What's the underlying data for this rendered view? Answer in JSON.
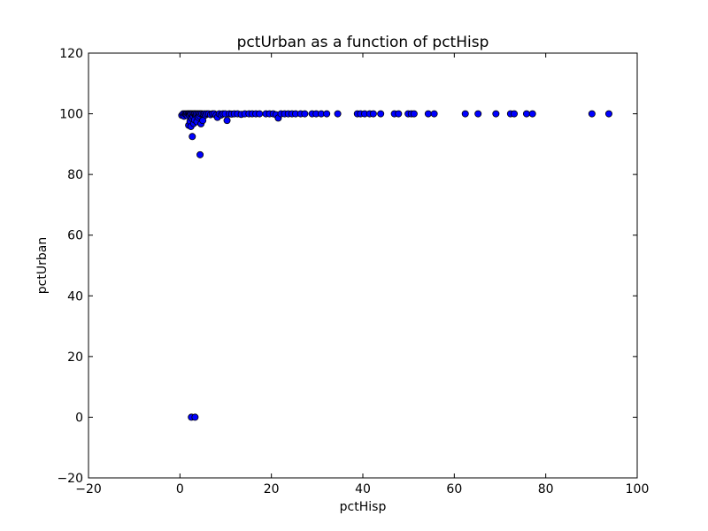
{
  "chart_data": {
    "type": "scatter",
    "title": "pctUrban as a function of pctHisp",
    "xlabel": "pctHisp",
    "ylabel": "pctUrban",
    "xlim": [
      -20,
      100
    ],
    "ylim": [
      -20,
      120
    ],
    "xticks": [
      -20,
      0,
      20,
      40,
      60,
      80,
      100
    ],
    "yticks": [
      -20,
      0,
      20,
      40,
      60,
      80,
      100,
      120
    ],
    "grid": false,
    "marker_color": "#0000ff",
    "marker_edge": "#000000",
    "points": [
      [
        0.4,
        99.5
      ],
      [
        0.7,
        100
      ],
      [
        0.9,
        99.2
      ],
      [
        1.1,
        100
      ],
      [
        1.3,
        99.8
      ],
      [
        1.5,
        100
      ],
      [
        1.6,
        99.4
      ],
      [
        1.8,
        100
      ],
      [
        1.9,
        96.2
      ],
      [
        2.0,
        100
      ],
      [
        2.1,
        99.6
      ],
      [
        2.2,
        97.5
      ],
      [
        2.3,
        100
      ],
      [
        2.4,
        95.8
      ],
      [
        2.5,
        100
      ],
      [
        2.6,
        98.5
      ],
      [
        2.7,
        92.5
      ],
      [
        2.8,
        100
      ],
      [
        2.9,
        99.1
      ],
      [
        3.0,
        96.8
      ],
      [
        3.1,
        100
      ],
      [
        3.2,
        98.0
      ],
      [
        3.3,
        100
      ],
      [
        3.5,
        99.6
      ],
      [
        3.6,
        100
      ],
      [
        3.7,
        97.4
      ],
      [
        3.9,
        100
      ],
      [
        4.0,
        98.8
      ],
      [
        4.2,
        100
      ],
      [
        4.3,
        99.3
      ],
      [
        4.4,
        86.5
      ],
      [
        4.5,
        100
      ],
      [
        4.6,
        96.7
      ],
      [
        4.8,
        100
      ],
      [
        5.0,
        97.8
      ],
      [
        5.1,
        99.9
      ],
      [
        5.4,
        100
      ],
      [
        5.6,
        99.6
      ],
      [
        5.9,
        100
      ],
      [
        6.3,
        100
      ],
      [
        6.7,
        99.7
      ],
      [
        7.1,
        100
      ],
      [
        7.5,
        100
      ],
      [
        7.9,
        99.5
      ],
      [
        8.2,
        98.8
      ],
      [
        8.6,
        100
      ],
      [
        9.0,
        99.6
      ],
      [
        9.4,
        100
      ],
      [
        9.9,
        100
      ],
      [
        10.3,
        97.8
      ],
      [
        10.8,
        100
      ],
      [
        11.3,
        99.9
      ],
      [
        11.9,
        100
      ],
      [
        12.6,
        100
      ],
      [
        13.4,
        99.8
      ],
      [
        14.2,
        100
      ],
      [
        15.1,
        100
      ],
      [
        15.8,
        100
      ],
      [
        16.6,
        100
      ],
      [
        17.4,
        100
      ],
      [
        18.8,
        100
      ],
      [
        19.6,
        100
      ],
      [
        20.4,
        100
      ],
      [
        21.0,
        99.7
      ],
      [
        21.5,
        98.6
      ],
      [
        22.1,
        100
      ],
      [
        22.9,
        100
      ],
      [
        23.7,
        100
      ],
      [
        24.5,
        100
      ],
      [
        25.3,
        100
      ],
      [
        26.4,
        100
      ],
      [
        27.3,
        100
      ],
      [
        28.9,
        100
      ],
      [
        29.8,
        100
      ],
      [
        30.9,
        100
      ],
      [
        32.1,
        100
      ],
      [
        34.5,
        100
      ],
      [
        38.8,
        100
      ],
      [
        39.5,
        100
      ],
      [
        40.4,
        100
      ],
      [
        41.5,
        100
      ],
      [
        42.3,
        100
      ],
      [
        43.9,
        100
      ],
      [
        46.9,
        100
      ],
      [
        47.8,
        100
      ],
      [
        49.9,
        100
      ],
      [
        50.6,
        100
      ],
      [
        51.2,
        100
      ],
      [
        54.3,
        100
      ],
      [
        55.6,
        100
      ],
      [
        62.4,
        100
      ],
      [
        65.2,
        100
      ],
      [
        69.1,
        100
      ],
      [
        72.3,
        100
      ],
      [
        73.1,
        100
      ],
      [
        75.8,
        100
      ],
      [
        77.1,
        100
      ],
      [
        90.1,
        100
      ],
      [
        93.8,
        100
      ],
      [
        2.5,
        0
      ],
      [
        3.3,
        0
      ]
    ]
  }
}
